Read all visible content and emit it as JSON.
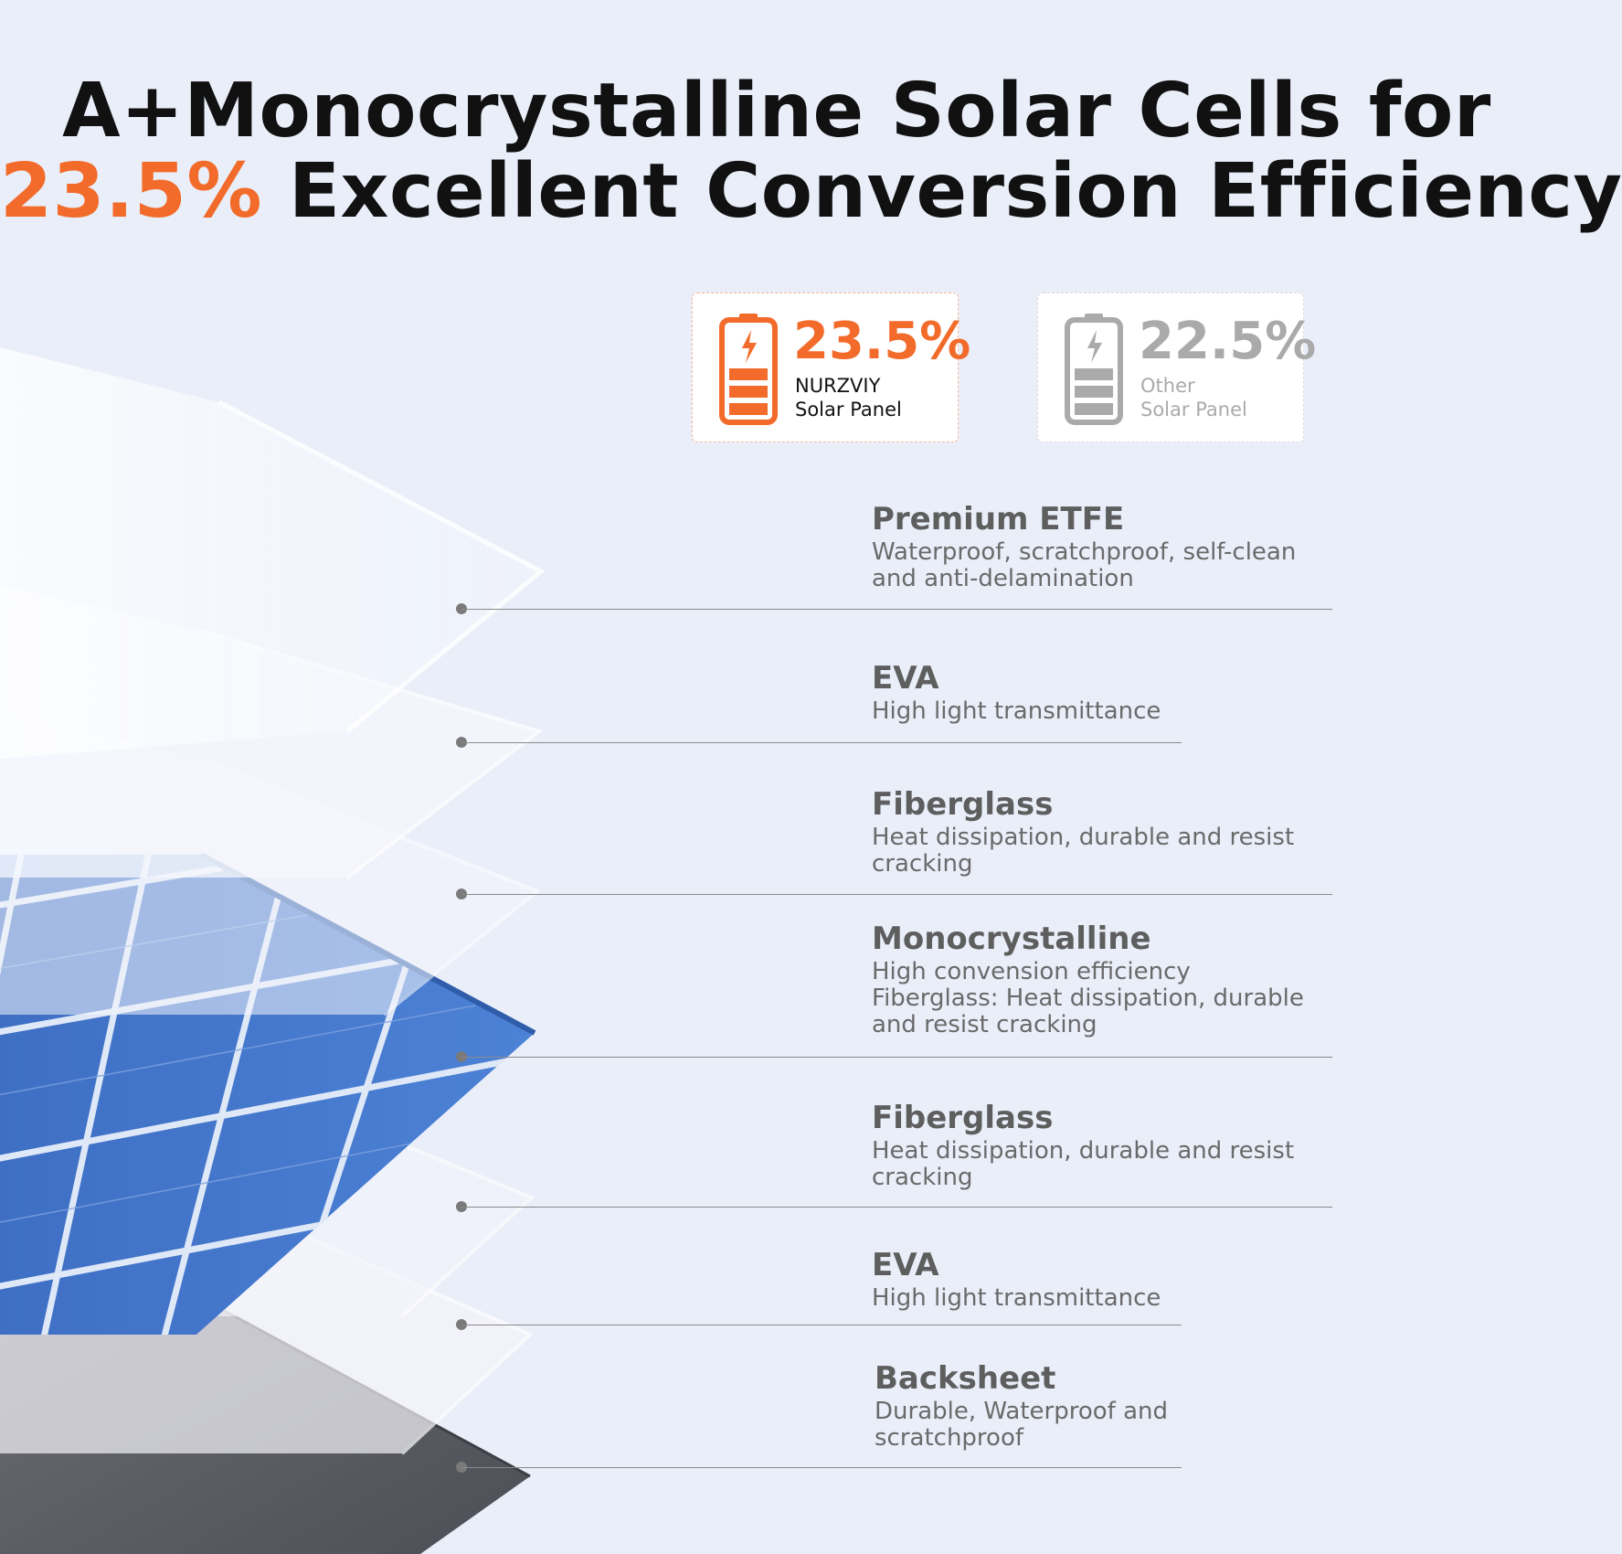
{
  "headline": {
    "line1": "A+Monocrystalline Solar Cells for",
    "accent": "23.5%",
    "line2_rest": " Excellent Conversion Efficiency"
  },
  "comparison": [
    {
      "percent": "23.5%",
      "label_line1": "NURZVIY",
      "label_line2": "Solar Panel",
      "icon": "battery-charging-icon",
      "color": "#f26b2a"
    },
    {
      "percent": "22.5%",
      "label_line1": "Other",
      "label_line2": "Solar Panel",
      "icon": "battery-charging-icon",
      "color": "#aaaaaa"
    }
  ],
  "layers": [
    {
      "title": "Premium ETFE",
      "desc": [
        "Waterproof, scratchproof, self-clean",
        "and anti-delamination"
      ]
    },
    {
      "title": "EVA",
      "desc": [
        "High light transmittance"
      ]
    },
    {
      "title": "Fiberglass",
      "desc": [
        "Heat dissipation, durable and resist",
        "cracking"
      ]
    },
    {
      "title": "Monocrystalline",
      "desc": [
        "High convension efficiency",
        "Fiberglass: Heat dissipation, durable",
        "and resist cracking"
      ]
    },
    {
      "title": "Fiberglass",
      "desc": [
        "Heat dissipation, durable and resist",
        "cracking"
      ]
    },
    {
      "title": "EVA",
      "desc": [
        "High light transmittance"
      ]
    },
    {
      "title": "Backsheet",
      "desc": [
        "Durable, Waterproof and",
        "scratchproof"
      ]
    }
  ]
}
